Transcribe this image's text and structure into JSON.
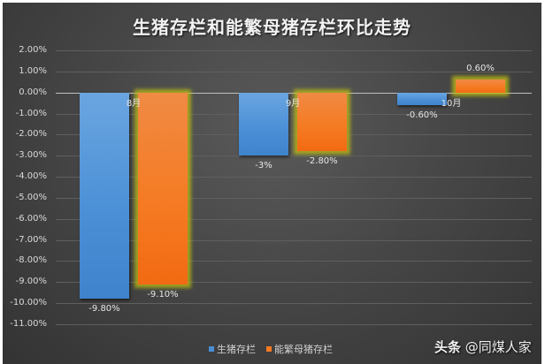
{
  "chart_data": {
    "type": "bar",
    "title": "生猪存栏和能繁母猪存栏环比走势",
    "categories": [
      "8月",
      "9月",
      "10月"
    ],
    "series": [
      {
        "name": "生猪存栏",
        "values": [
          -9.8,
          -3.0,
          -0.6
        ],
        "labels": [
          "-9.80%",
          "-3%",
          "-0.60%"
        ],
        "color": "#4a8fd6"
      },
      {
        "name": "能繁母猪存栏",
        "values": [
          -9.1,
          -2.8,
          0.6
        ],
        "labels": [
          "-9.10%",
          "-2.80%",
          "0.60%"
        ],
        "color": "#f57a22"
      }
    ],
    "xlabel": "",
    "ylabel": "",
    "ylim": [
      -11,
      2
    ],
    "yticks": [
      "2.00%",
      "1.00%",
      "0.00%",
      "-1.00%",
      "-2.00%",
      "-3.00%",
      "-4.00%",
      "-5.00%",
      "-6.00%",
      "-7.00%",
      "-8.00%",
      "-9.00%",
      "-10.00%",
      "-11.00%"
    ],
    "grid": true,
    "legend_position": "bottom"
  },
  "legend": {
    "items": [
      {
        "label": "生猪存栏",
        "color": "#4a8fd6"
      },
      {
        "label": "能繁母猪存栏",
        "color": "#f57a22"
      }
    ]
  },
  "watermark": {
    "brand": "头条",
    "handle": "@同煤人家"
  }
}
